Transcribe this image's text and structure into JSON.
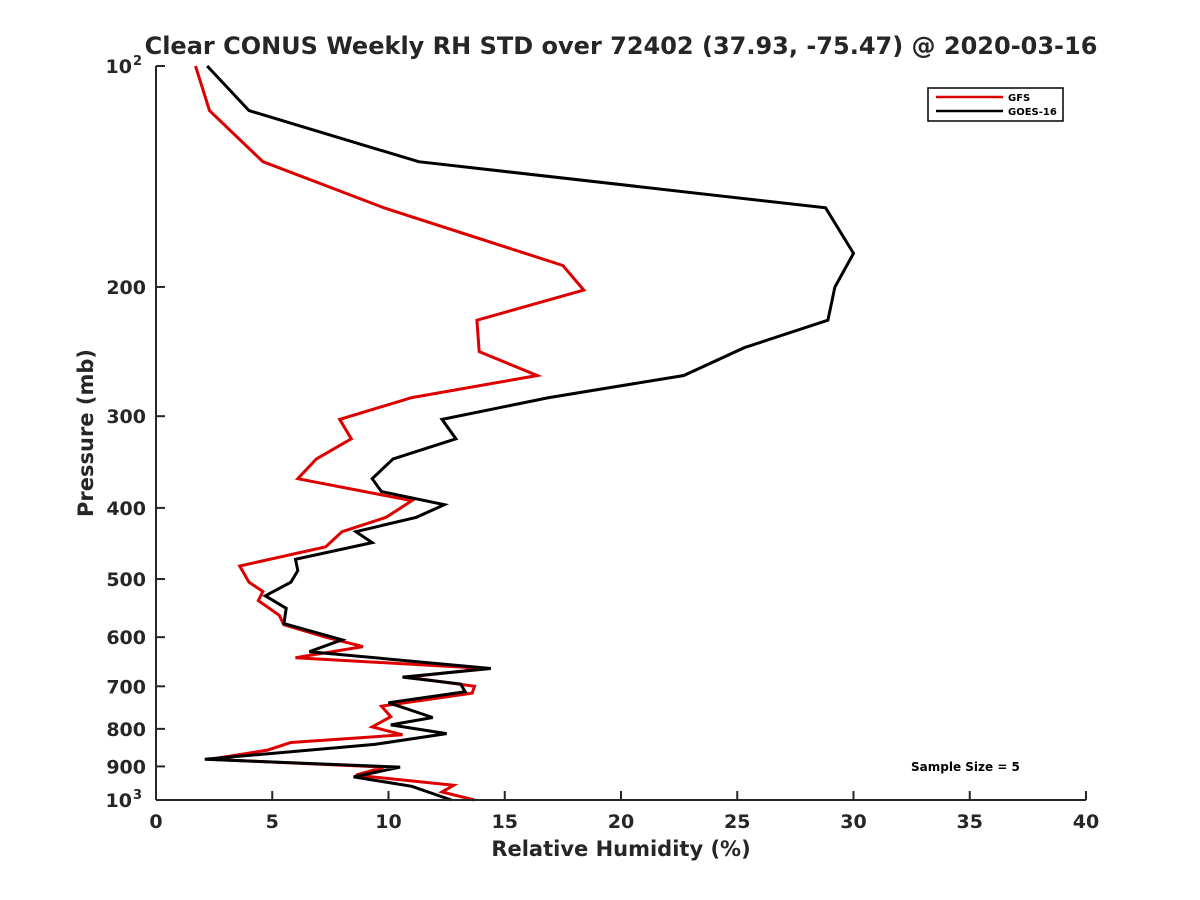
{
  "chart_data": {
    "type": "line",
    "title": "Clear CONUS Weekly RH STD over 72402 (37.93, -75.47) @ 2020-03-16",
    "xlabel": "Relative Humidity (%)",
    "ylabel": "Pressure (mb)",
    "xlim": [
      0,
      40
    ],
    "ylim": [
      100,
      1000
    ],
    "yscale": "log",
    "y_reversed": true,
    "grid": false,
    "legend_position": "top-right",
    "x_ticks": [
      "0",
      "5",
      "10",
      "15",
      "20",
      "25",
      "30",
      "35",
      "40"
    ],
    "y_ticks": [
      {
        "value": 100,
        "base": "10",
        "exp": "2"
      },
      {
        "value": 200,
        "label": "200"
      },
      {
        "value": 300,
        "label": "300"
      },
      {
        "value": 400,
        "label": "400"
      },
      {
        "value": 500,
        "label": "500"
      },
      {
        "value": 600,
        "label": "600"
      },
      {
        "value": 700,
        "label": "700"
      },
      {
        "value": 800,
        "label": "800"
      },
      {
        "value": 900,
        "label": "900"
      },
      {
        "value": 1000,
        "base": "10",
        "exp": "3"
      }
    ],
    "series": [
      {
        "name": "GFS",
        "color": "#dd0000",
        "points": [
          [
            1.7,
            100
          ],
          [
            2.3,
            115
          ],
          [
            4.6,
            135
          ],
          [
            9.8,
            156
          ],
          [
            17.5,
            187
          ],
          [
            18.4,
            202
          ],
          [
            13.8,
            222
          ],
          [
            13.9,
            245
          ],
          [
            16.4,
            264
          ],
          [
            11.0,
            283
          ],
          [
            7.9,
            303
          ],
          [
            8.4,
            322
          ],
          [
            6.9,
            343
          ],
          [
            6.1,
            365
          ],
          [
            11.0,
            391
          ],
          [
            9.9,
            412
          ],
          [
            8.0,
            431
          ],
          [
            7.3,
            452
          ],
          [
            3.6,
            480
          ],
          [
            4.0,
            505
          ],
          [
            4.6,
            520
          ],
          [
            4.4,
            535
          ],
          [
            5.3,
            560
          ],
          [
            5.5,
            577
          ],
          [
            7.3,
            600
          ],
          [
            8.9,
            618
          ],
          [
            6.0,
            640
          ],
          [
            14.2,
            662
          ],
          [
            10.8,
            680
          ],
          [
            13.7,
            700
          ],
          [
            13.6,
            715
          ],
          [
            9.7,
            745
          ],
          [
            10.1,
            770
          ],
          [
            9.3,
            795
          ],
          [
            10.6,
            815
          ],
          [
            5.8,
            835
          ],
          [
            4.8,
            855
          ],
          [
            2.3,
            880
          ],
          [
            9.8,
            902
          ],
          [
            8.6,
            925
          ],
          [
            12.8,
            955
          ],
          [
            12.3,
            975
          ],
          [
            13.7,
            1000
          ]
        ]
      },
      {
        "name": "GOES-16",
        "color": "#000000",
        "points": [
          [
            2.2,
            100
          ],
          [
            4.0,
            115
          ],
          [
            11.3,
            135
          ],
          [
            28.8,
            156
          ],
          [
            30.0,
            180
          ],
          [
            29.2,
            200
          ],
          [
            28.9,
            222
          ],
          [
            25.3,
            242
          ],
          [
            22.7,
            264
          ],
          [
            16.9,
            283
          ],
          [
            12.3,
            303
          ],
          [
            12.9,
            322
          ],
          [
            10.2,
            343
          ],
          [
            9.3,
            365
          ],
          [
            9.7,
            380
          ],
          [
            12.4,
            396
          ],
          [
            11.2,
            412
          ],
          [
            8.6,
            431
          ],
          [
            9.3,
            446
          ],
          [
            6.0,
            470
          ],
          [
            6.1,
            487
          ],
          [
            5.8,
            505
          ],
          [
            4.7,
            527
          ],
          [
            5.6,
            548
          ],
          [
            5.5,
            575
          ],
          [
            8.0,
            605
          ],
          [
            6.6,
            628
          ],
          [
            14.4,
            662
          ],
          [
            10.6,
            680
          ],
          [
            13.1,
            695
          ],
          [
            13.3,
            712
          ],
          [
            10.0,
            737
          ],
          [
            11.9,
            772
          ],
          [
            10.1,
            790
          ],
          [
            12.5,
            812
          ],
          [
            9.4,
            840
          ],
          [
            2.1,
            880
          ],
          [
            10.5,
            902
          ],
          [
            8.5,
            930
          ],
          [
            11.0,
            958
          ],
          [
            12.7,
            1000
          ]
        ]
      }
    ],
    "legend": [
      {
        "label": "GFS",
        "color": "#dd0000"
      },
      {
        "label": "GOES-16",
        "color": "#000000"
      }
    ],
    "annotations": [
      "Sample Size = 5"
    ]
  }
}
